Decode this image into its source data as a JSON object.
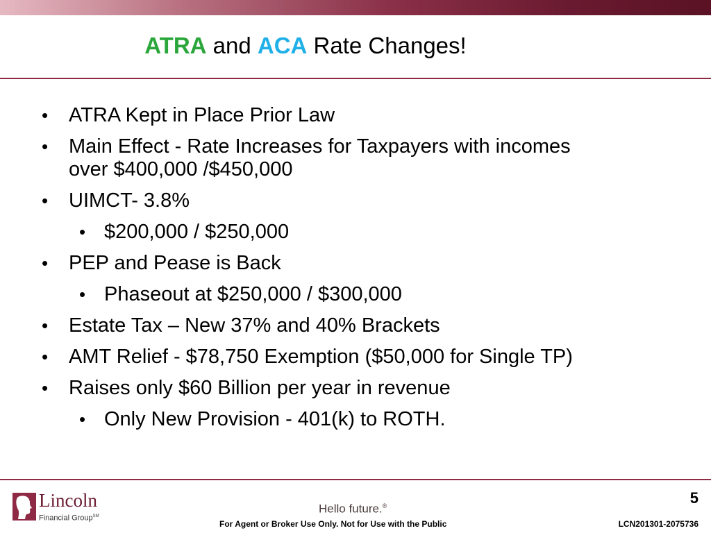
{
  "header": {
    "title_part1": "ATRA",
    "title_part2": " and ",
    "title_part3": "ACA",
    "title_part4": " Rate Changes!",
    "accent_colors": {
      "atra": "#2aa63a",
      "aca": "#1fb0e8",
      "brand": "#8e2a44"
    }
  },
  "bullets": [
    {
      "level": 1,
      "text": "ATRA Kept in Place Prior Law"
    },
    {
      "level": 1,
      "text": "Main Effect - Rate Increases for Taxpayers with incomes",
      "text2": "over $400,000 /$450,000"
    },
    {
      "level": 1,
      "text": "UIMCT- 3.8%"
    },
    {
      "level": 2,
      "text": "$200,000 / $250,000"
    },
    {
      "level": 1,
      "text": "PEP and Pease is Back"
    },
    {
      "level": 2,
      "text": "Phaseout at $250,000 / $300,000"
    },
    {
      "level": 1,
      "text": "Estate Tax – New 37% and 40% Brackets"
    },
    {
      "level": 1,
      "text": "AMT Relief - $78,750 Exemption ($50,000 for Single TP)"
    },
    {
      "level": 1,
      "text": "Raises only $60 Billion per year in revenue"
    },
    {
      "level": 2,
      "text": "Only New Provision - 401(k) to ROTH."
    }
  ],
  "bullet_glyph": "•",
  "footer": {
    "logo_name": "Lincoln",
    "logo_sub": "Financial Group",
    "logo_sub_mark": "SM",
    "tagline": "Hello future.",
    "tagline_mark": "®",
    "page_number": "5",
    "note": "For Agent or Broker Use Only. Not for Use with the Public",
    "code": "LCN201301-2075736"
  }
}
